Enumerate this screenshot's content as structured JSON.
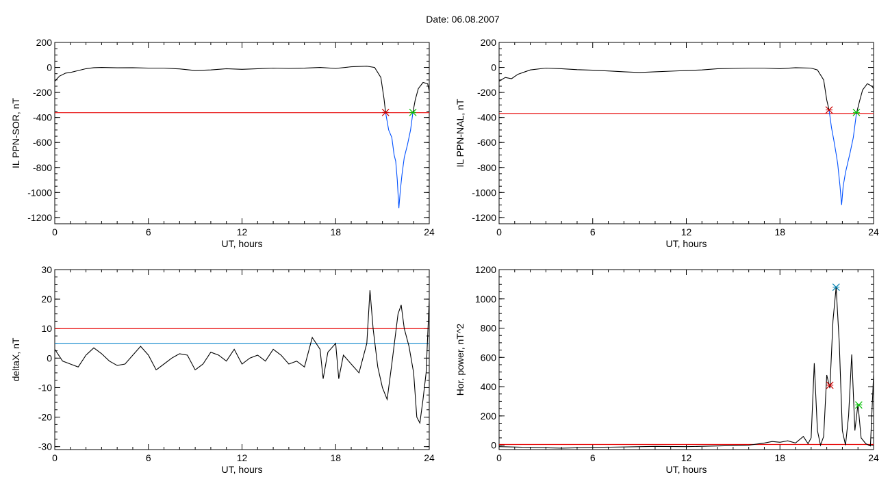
{
  "page_title": "Date:  06.08.2007",
  "chart_data": [
    {
      "id": "p1",
      "type": "line",
      "ylabel": "IL PPN-SOR, nT",
      "xlabel": "UT, hours",
      "xlim": [
        0,
        24
      ],
      "ylim": [
        -1250,
        200
      ],
      "xticks": [
        0,
        6,
        12,
        18,
        24
      ],
      "yticks": [
        200,
        0,
        -200,
        -400,
        -600,
        -800,
        -1000,
        -1200
      ],
      "threshold_lines": [
        {
          "y": -362,
          "color": "#e60000"
        }
      ],
      "series": [
        {
          "color": "#000000",
          "points": [
            [
              0,
              -110
            ],
            [
              0.3,
              -70
            ],
            [
              0.7,
              -45
            ],
            [
              1,
              -40
            ],
            [
              1.5,
              -25
            ],
            [
              2,
              -10
            ],
            [
              2.5,
              -2
            ],
            [
              3,
              0
            ],
            [
              4,
              -3
            ],
            [
              5,
              -2
            ],
            [
              6,
              -5
            ],
            [
              7,
              -5
            ],
            [
              8,
              -12
            ],
            [
              9,
              -25
            ],
            [
              10,
              -20
            ],
            [
              11,
              -10
            ],
            [
              12,
              -15
            ],
            [
              13,
              -10
            ],
            [
              14,
              -5
            ],
            [
              15,
              -8
            ],
            [
              16,
              -6
            ],
            [
              17,
              0
            ],
            [
              18,
              -8
            ],
            [
              19,
              5
            ],
            [
              20,
              10
            ],
            [
              20.5,
              0
            ],
            [
              20.9,
              -80
            ],
            [
              21.1,
              -250
            ],
            [
              21.2,
              -360
            ]
          ]
        },
        {
          "color": "#0050ff",
          "points": [
            [
              21.2,
              -360
            ],
            [
              21.4,
              -500
            ],
            [
              21.6,
              -560
            ],
            [
              21.75,
              -700
            ],
            [
              21.85,
              -750
            ],
            [
              21.95,
              -900
            ],
            [
              22.05,
              -1125
            ],
            [
              22.15,
              -980
            ],
            [
              22.25,
              -860
            ],
            [
              22.4,
              -720
            ],
            [
              22.6,
              -620
            ],
            [
              22.8,
              -500
            ],
            [
              22.95,
              -360
            ]
          ]
        },
        {
          "color": "#000000",
          "points": [
            [
              22.95,
              -360
            ],
            [
              23.1,
              -260
            ],
            [
              23.3,
              -170
            ],
            [
              23.6,
              -120
            ],
            [
              23.9,
              -130
            ],
            [
              24,
              -190
            ]
          ]
        }
      ],
      "markers": [
        {
          "x": 21.2,
          "y": -360,
          "color": "#cc0000",
          "symbol": "x"
        },
        {
          "x": 22.95,
          "y": -360,
          "color": "#00c000",
          "symbol": "x"
        }
      ]
    },
    {
      "id": "p2",
      "type": "line",
      "ylabel": "IL PPN-NAL, nT",
      "xlabel": "UT, hours",
      "xlim": [
        0,
        24
      ],
      "ylim": [
        -1250,
        200
      ],
      "xticks": [
        0,
        6,
        12,
        18,
        24
      ],
      "yticks": [
        200,
        0,
        -200,
        -400,
        -600,
        -800,
        -1000,
        -1200
      ],
      "threshold_lines": [
        {
          "y": -368,
          "color": "#e60000"
        }
      ],
      "series": [
        {
          "color": "#000000",
          "points": [
            [
              0,
              -110
            ],
            [
              0.4,
              -80
            ],
            [
              0.8,
              -90
            ],
            [
              1.2,
              -55
            ],
            [
              2,
              -20
            ],
            [
              3,
              -5
            ],
            [
              4,
              -10
            ],
            [
              5,
              -18
            ],
            [
              6,
              -22
            ],
            [
              7,
              -28
            ],
            [
              8,
              -35
            ],
            [
              9,
              -40
            ],
            [
              10,
              -35
            ],
            [
              11,
              -30
            ],
            [
              12,
              -25
            ],
            [
              13,
              -20
            ],
            [
              14,
              -10
            ],
            [
              15,
              -8
            ],
            [
              16,
              -5
            ],
            [
              17,
              -5
            ],
            [
              18,
              -10
            ],
            [
              19,
              -2
            ],
            [
              20,
              -5
            ],
            [
              20.4,
              -20
            ],
            [
              20.8,
              -100
            ],
            [
              21,
              -260
            ],
            [
              21.15,
              -340
            ]
          ]
        },
        {
          "color": "#0050ff",
          "points": [
            [
              21.15,
              -340
            ],
            [
              21.3,
              -480
            ],
            [
              21.45,
              -580
            ],
            [
              21.6,
              -690
            ],
            [
              21.7,
              -770
            ],
            [
              21.85,
              -950
            ],
            [
              21.95,
              -1100
            ],
            [
              22.05,
              -950
            ],
            [
              22.2,
              -840
            ],
            [
              22.35,
              -760
            ],
            [
              22.5,
              -680
            ],
            [
              22.7,
              -560
            ],
            [
              22.9,
              -370
            ]
          ]
        },
        {
          "color": "#000000",
          "points": [
            [
              22.9,
              -370
            ],
            [
              23.1,
              -270
            ],
            [
              23.3,
              -180
            ],
            [
              23.6,
              -130
            ],
            [
              23.9,
              -150
            ],
            [
              24,
              -170
            ]
          ]
        }
      ],
      "markers": [
        {
          "x": 21.15,
          "y": -340,
          "color": "#cc0000",
          "symbol": "x"
        },
        {
          "x": 22.9,
          "y": -360,
          "color": "#00c000",
          "symbol": "x"
        }
      ]
    },
    {
      "id": "p3",
      "type": "line",
      "ylabel": "deltaX, nT",
      "xlabel": "UT, hours",
      "xlim": [
        0,
        24
      ],
      "ylim": [
        -31,
        30
      ],
      "xticks": [
        0,
        6,
        12,
        18,
        24
      ],
      "yticks": [
        30,
        20,
        10,
        0,
        -10,
        -20,
        -30
      ],
      "threshold_lines": [
        {
          "y": 10,
          "color": "#e60000"
        },
        {
          "y": 5,
          "color": "#1f8fcf"
        }
      ],
      "series": [
        {
          "color": "#000000",
          "points": [
            [
              0,
              3
            ],
            [
              0.5,
              -1
            ],
            [
              1,
              -2
            ],
            [
              1.5,
              -3
            ],
            [
              2,
              1
            ],
            [
              2.5,
              3.5
            ],
            [
              3,
              1.5
            ],
            [
              3.5,
              -1
            ],
            [
              4,
              -2.5
            ],
            [
              4.5,
              -2
            ],
            [
              5,
              1
            ],
            [
              5.5,
              4
            ],
            [
              6,
              1
            ],
            [
              6.5,
              -4
            ],
            [
              7,
              -2
            ],
            [
              7.5,
              0
            ],
            [
              8,
              1.5
            ],
            [
              8.5,
              1
            ],
            [
              9,
              -4
            ],
            [
              9.5,
              -2
            ],
            [
              10,
              2
            ],
            [
              10.5,
              1
            ],
            [
              11,
              -1
            ],
            [
              11.5,
              3
            ],
            [
              12,
              -2
            ],
            [
              12.5,
              0
            ],
            [
              13,
              1
            ],
            [
              13.5,
              -1
            ],
            [
              14,
              3
            ],
            [
              14.5,
              1
            ],
            [
              15,
              -2
            ],
            [
              15.5,
              -1
            ],
            [
              16,
              -3
            ],
            [
              16.5,
              7
            ],
            [
              17,
              3
            ],
            [
              17.2,
              -7
            ],
            [
              17.5,
              2
            ],
            [
              18,
              5
            ],
            [
              18.2,
              -7
            ],
            [
              18.5,
              1
            ],
            [
              19,
              -2
            ],
            [
              19.5,
              -5
            ],
            [
              20,
              5
            ],
            [
              20.2,
              23
            ],
            [
              20.4,
              10
            ],
            [
              20.7,
              -3
            ],
            [
              21,
              -10
            ],
            [
              21.3,
              -14
            ],
            [
              21.6,
              -2
            ],
            [
              22,
              15
            ],
            [
              22.2,
              18
            ],
            [
              22.4,
              10
            ],
            [
              22.7,
              4
            ],
            [
              23,
              -5
            ],
            [
              23.2,
              -20
            ],
            [
              23.4,
              -22
            ],
            [
              23.6,
              -14
            ],
            [
              23.8,
              -5
            ],
            [
              24,
              20
            ]
          ]
        }
      ],
      "markers": []
    },
    {
      "id": "p4",
      "type": "line",
      "ylabel": "Hor. power, nT^2",
      "xlabel": "UT, hours",
      "xlim": [
        0,
        24
      ],
      "ylim": [
        -30,
        1200
      ],
      "xticks": [
        0,
        6,
        12,
        18,
        24
      ],
      "yticks": [
        1200,
        1000,
        800,
        600,
        400,
        200,
        0
      ],
      "threshold_lines": [
        {
          "y": 5,
          "color": "#e60000"
        }
      ],
      "series": [
        {
          "color": "#000000",
          "points": [
            [
              0,
              -10
            ],
            [
              2,
              -15
            ],
            [
              4,
              -20
            ],
            [
              6,
              -15
            ],
            [
              8,
              -12
            ],
            [
              10,
              -8
            ],
            [
              12,
              -10
            ],
            [
              14,
              -5
            ],
            [
              16,
              0
            ],
            [
              17,
              15
            ],
            [
              17.5,
              25
            ],
            [
              18,
              20
            ],
            [
              18.5,
              30
            ],
            [
              19,
              15
            ],
            [
              19.5,
              60
            ],
            [
              19.8,
              10
            ],
            [
              20,
              50
            ],
            [
              20.2,
              560
            ],
            [
              20.4,
              100
            ],
            [
              20.6,
              0
            ],
            [
              20.8,
              60
            ],
            [
              21,
              480
            ],
            [
              21.2,
              390
            ],
            [
              21.4,
              850
            ],
            [
              21.6,
              1080
            ],
            [
              21.8,
              700
            ],
            [
              22,
              100
            ],
            [
              22.2,
              0
            ],
            [
              22.4,
              200
            ],
            [
              22.6,
              620
            ],
            [
              22.8,
              100
            ],
            [
              23,
              280
            ],
            [
              23.2,
              50
            ],
            [
              23.5,
              10
            ],
            [
              23.8,
              -5
            ],
            [
              24,
              480
            ]
          ]
        }
      ],
      "markers": [
        {
          "x": 21.2,
          "y": 410,
          "color": "#cc0000",
          "symbol": "x"
        },
        {
          "x": 21.6,
          "y": 1080,
          "color": "#0080b0",
          "symbol": "x"
        },
        {
          "x": 23.05,
          "y": 275,
          "color": "#00c000",
          "symbol": "x"
        }
      ]
    }
  ]
}
